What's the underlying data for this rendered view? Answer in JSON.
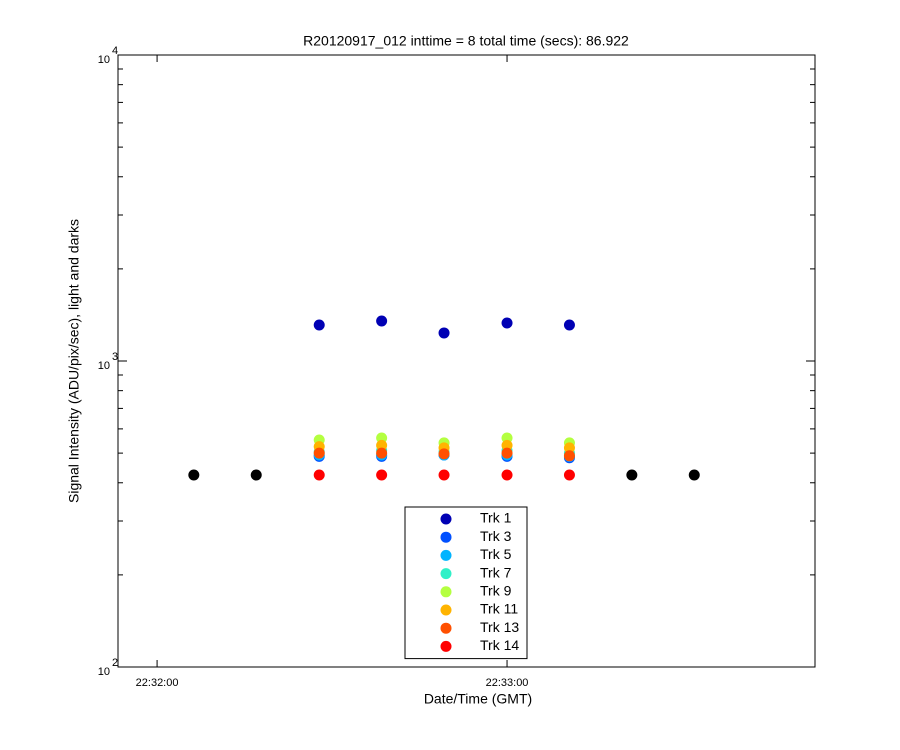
{
  "chart_data": {
    "type": "scatter",
    "title": "R20120917_012 inttime = 8 total time (secs): 86.922",
    "xlabel": "Date/Time (GMT)",
    "ylabel": "Signal Intensity (ADU/pix/sec), light and darks",
    "x": [
      6.3,
      17.0,
      27.8,
      38.5,
      49.2,
      60.0,
      70.7,
      81.4,
      92.1
    ],
    "xlim": [
      -6.7,
      112.8
    ],
    "xticks": [
      {
        "value": 0,
        "label": "22:32:00"
      },
      {
        "value": 60,
        "label": "22:33:00"
      }
    ],
    "ylim": [
      100,
      10000
    ],
    "yticks": [
      {
        "value": 100,
        "label": "10",
        "exponent": "2"
      },
      {
        "value": 1000,
        "label": "10",
        "exponent": "3"
      },
      {
        "value": 10000,
        "label": "10",
        "exponent": "4"
      }
    ],
    "log_y": true,
    "grid": false,
    "series": [
      {
        "color": "#000000",
        "values": [
          424,
          424,
          null,
          null,
          null,
          null,
          null,
          424,
          424
        ]
      },
      {
        "name": "Trk 1",
        "color": "#0000b4",
        "values": [
          null,
          null,
          1311,
          1351,
          1235,
          1331,
          1311,
          null,
          null
        ]
      },
      {
        "name": "Trk 3",
        "color": "#0050ff",
        "values": [
          null,
          null,
          488,
          488,
          493,
          488,
          483,
          null,
          null
        ]
      },
      {
        "name": "Trk 5",
        "color": "#00b4ff",
        "values": [
          null,
          null,
          493,
          493,
          493,
          493,
          488,
          null,
          null
        ]
      },
      {
        "name": "Trk 7",
        "color": "#30f0c8",
        "values": [
          null,
          null,
          505,
          510,
          505,
          510,
          500,
          null,
          null
        ]
      },
      {
        "name": "Trk 9",
        "color": "#b4ff40",
        "values": [
          null,
          null,
          552,
          560,
          540,
          560,
          540,
          null,
          null
        ]
      },
      {
        "name": "Trk 11",
        "color": "#ffb400",
        "values": [
          null,
          null,
          525,
          530,
          520,
          530,
          520,
          null,
          null
        ]
      },
      {
        "name": "Trk 13",
        "color": "#ff5000",
        "values": [
          null,
          null,
          500,
          500,
          497,
          500,
          490,
          null,
          null
        ]
      },
      {
        "name": "Trk 14",
        "color": "#ff0000",
        "values": [
          null,
          null,
          424,
          424,
          424,
          424,
          424,
          null,
          null
        ]
      }
    ]
  }
}
